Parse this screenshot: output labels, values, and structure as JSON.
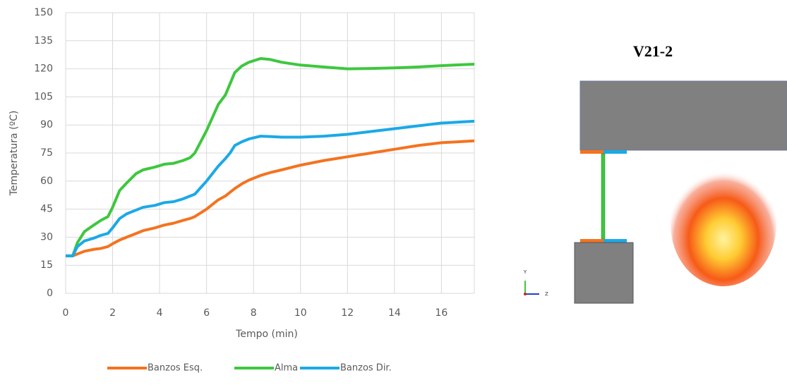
{
  "chart_data": {
    "type": "line",
    "x_label": "Tempo (min)",
    "y_label": "Temperatura (ºC)",
    "x": [
      0,
      0.3,
      0.5,
      0.8,
      1.2,
      1.5,
      1.8,
      2,
      2.3,
      2.6,
      3,
      3.3,
      3.8,
      4.2,
      4.6,
      5,
      5.3,
      5.5,
      6,
      6.5,
      6.8,
      7,
      7.2,
      7.5,
      7.8,
      8.3,
      8.7,
      9.2,
      10,
      11,
      12,
      13,
      14,
      15,
      16,
      17.4
    ],
    "series": [
      {
        "name": "Banzos Esq.",
        "color": "#f4731f",
        "values": [
          20,
          20,
          21,
          22.5,
          23.5,
          24,
          25,
          26.5,
          28.5,
          30,
          32,
          33.5,
          35,
          36.5,
          37.5,
          39,
          40,
          41,
          45,
          50,
          52,
          54,
          56,
          58.5,
          60.5,
          63,
          64.5,
          66,
          68.5,
          71,
          73,
          75,
          77,
          79,
          80.5,
          81.5
        ]
      },
      {
        "name": "Alma",
        "color": "#3ec73e",
        "values": [
          20,
          20,
          27,
          33,
          36.5,
          39,
          41,
          46,
          55,
          59,
          64,
          66,
          67.5,
          69,
          69.5,
          71,
          72.5,
          75,
          87,
          101,
          106,
          112,
          118,
          121.5,
          123.5,
          125.5,
          125,
          123.5,
          122,
          121,
          120,
          120.2,
          120.5,
          121,
          121.7,
          122.5
        ]
      },
      {
        "name": "Banzos Dir.",
        "color": "#1ba9e6",
        "values": [
          20,
          20,
          25,
          28,
          29.5,
          31,
          32,
          35,
          40,
          42.5,
          44.5,
          46,
          47,
          48.5,
          49,
          50.5,
          52,
          53,
          60,
          68,
          72,
          75,
          79,
          81,
          82.5,
          84,
          83.8,
          83.5,
          83.5,
          84,
          85,
          86.5,
          88,
          89.5,
          91,
          92
        ]
      }
    ],
    "xlim": [
      0,
      17.4
    ],
    "xticks": [
      0,
      2,
      4,
      6,
      8,
      10,
      12,
      14,
      16
    ],
    "ylim": [
      0,
      150
    ],
    "yticks": [
      0,
      15,
      30,
      45,
      60,
      75,
      90,
      105,
      120,
      135,
      150
    ],
    "grid": true,
    "legend": "bottom"
  },
  "diagram": {
    "title": "V21-2",
    "axis_labels": [
      "Y",
      "Z"
    ]
  }
}
